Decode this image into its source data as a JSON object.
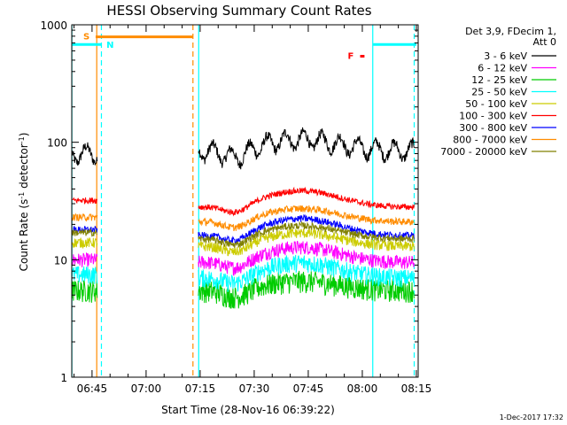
{
  "chart_data": {
    "type": "line",
    "title": "HESSI Observing Summary Count Rates",
    "xlabel": "Start Time (28-Nov-16 06:39:22)",
    "ylabel_main": "Count Rate (s",
    "ylabel_sup1": "-1",
    "ylabel_mid": " detector",
    "ylabel_sup2": "-1",
    "ylabel_end": ")",
    "y_scale": "log",
    "ylim": [
      1,
      1000
    ],
    "xlim_minutes": [
      399.37,
      495.5
    ],
    "x_ticks": [
      {
        "label": "06:45",
        "minutes": 405
      },
      {
        "label": "07:00",
        "minutes": 420
      },
      {
        "label": "07:15",
        "minutes": 435
      },
      {
        "label": "07:30",
        "minutes": 450
      },
      {
        "label": "07:45",
        "minutes": 465
      },
      {
        "label": "08:00",
        "minutes": 480
      },
      {
        "label": "08:15",
        "minutes": 495
      }
    ],
    "y_ticks": [
      {
        "label": "1",
        "value": 1
      },
      {
        "label": "10",
        "value": 10
      },
      {
        "label": "100",
        "value": 100
      },
      {
        "label": "1000",
        "value": 1000
      }
    ],
    "legend_header": [
      "Det 3,9, FDecim 1,",
      "Att 0"
    ],
    "series": [
      {
        "name": "3 - 6 keV",
        "color": "#000000",
        "level_before": 80,
        "level_after": 85,
        "bump": 1.25,
        "noise": 0.1
      },
      {
        "name": "6 - 12 keV",
        "color": "#ff00ff",
        "level_before": 10,
        "level_after": 9.5,
        "bump": 1.35,
        "noise": 0.14
      },
      {
        "name": "12 - 25 keV",
        "color": "#00cc00",
        "level_before": 5.5,
        "level_after": 5.5,
        "bump": 1.2,
        "noise": 0.22
      },
      {
        "name": "25 - 50 keV",
        "color": "#00ffff",
        "level_before": 7.5,
        "level_after": 7,
        "bump": 1.35,
        "noise": 0.18
      },
      {
        "name": "50 - 100 keV",
        "color": "#cccc00",
        "level_before": 14,
        "level_after": 13,
        "bump": 1.3,
        "noise": 0.1
      },
      {
        "name": "100 - 300 keV",
        "color": "#ff0000",
        "level_before": 32,
        "level_after": 28,
        "bump": 1.38,
        "noise": 0.06
      },
      {
        "name": "300 - 800 keV",
        "color": "#0000ff",
        "level_before": 18,
        "level_after": 16,
        "bump": 1.4,
        "noise": 0.07
      },
      {
        "name": "800 - 7000 keV",
        "color": "#ff8c00",
        "level_before": 23,
        "level_after": 21,
        "bump": 1.3,
        "noise": 0.07
      },
      {
        "name": "7000 - 20000 keV",
        "color": "#808000",
        "level_before": 17,
        "level_after": 15,
        "bump": 1.3,
        "noise": 0.07
      }
    ],
    "data_gaps_minutes": [
      [
        406.5,
        434.5
      ]
    ],
    "night_flags": [
      {
        "label": "N",
        "color": "#00ffff",
        "start_minutes": 399.37,
        "end_minutes": 407.5,
        "level": 680
      },
      {
        "label": "",
        "color": "#00ffff",
        "start_minutes": 483.0,
        "end_minutes": 495.0,
        "level": 680
      }
    ],
    "saa_flag": {
      "label": "S",
      "color": "#ff8c00",
      "start_minutes": 406.0,
      "end_minutes": 433.0,
      "level": 790
    },
    "flare_flag": {
      "label": "F",
      "color": "#ff0000",
      "start_minutes": 479.4,
      "end_minutes": 480.6,
      "level": 540
    },
    "vertical_markers": [
      {
        "minutes": 399.4,
        "color": "#00ffff",
        "style": "solid"
      },
      {
        "minutes": 406.3,
        "color": "#ff8c00",
        "style": "solid"
      },
      {
        "minutes": 407.6,
        "color": "#00ffff",
        "style": "dashed"
      },
      {
        "minutes": 433.0,
        "color": "#ff8c00",
        "style": "dashed"
      },
      {
        "minutes": 434.6,
        "color": "#00ffff",
        "style": "solid"
      },
      {
        "minutes": 482.9,
        "color": "#00ffff",
        "style": "solid"
      },
      {
        "minutes": 494.4,
        "color": "#00ffff",
        "style": "dashed"
      }
    ],
    "footer": "1-Dec-2017 17:32"
  }
}
